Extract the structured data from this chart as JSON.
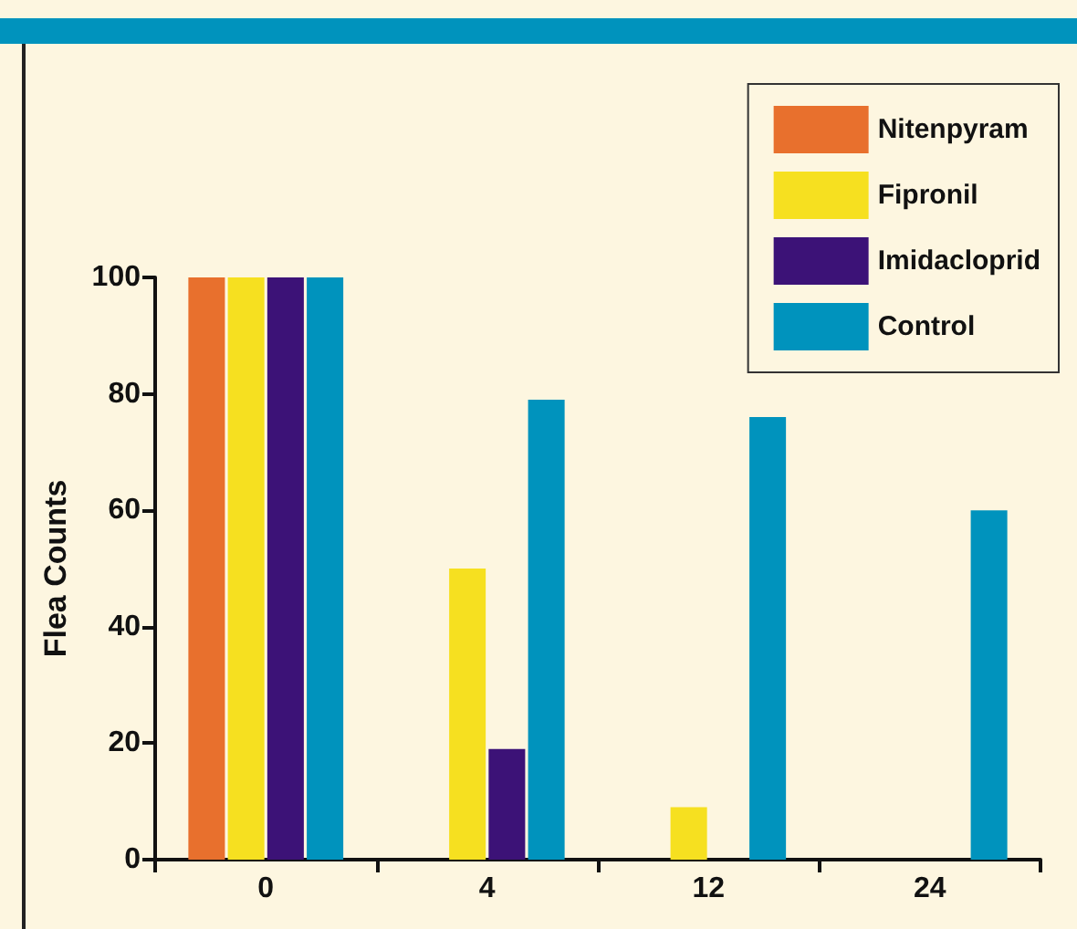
{
  "chart_data": {
    "type": "bar",
    "ylabel": "Flea Counts",
    "categories": [
      "0",
      "4",
      "12",
      "24"
    ],
    "series": [
      {
        "name": "Nitenpyram",
        "color": "#e8702d",
        "values": [
          100,
          0,
          0,
          0
        ]
      },
      {
        "name": "Fipronil",
        "color": "#f6e020",
        "values": [
          100,
          50,
          9,
          0
        ]
      },
      {
        "name": "Imidacloprid",
        "color": "#3c1277",
        "values": [
          100,
          19,
          0,
          0
        ]
      },
      {
        "name": "Control",
        "color": "#0093bd",
        "values": [
          100,
          79,
          76,
          60
        ]
      }
    ],
    "ylim": [
      0,
      100
    ],
    "yticks": [
      0,
      20,
      40,
      60,
      80,
      100
    ],
    "grid": false,
    "legend": "top right"
  }
}
